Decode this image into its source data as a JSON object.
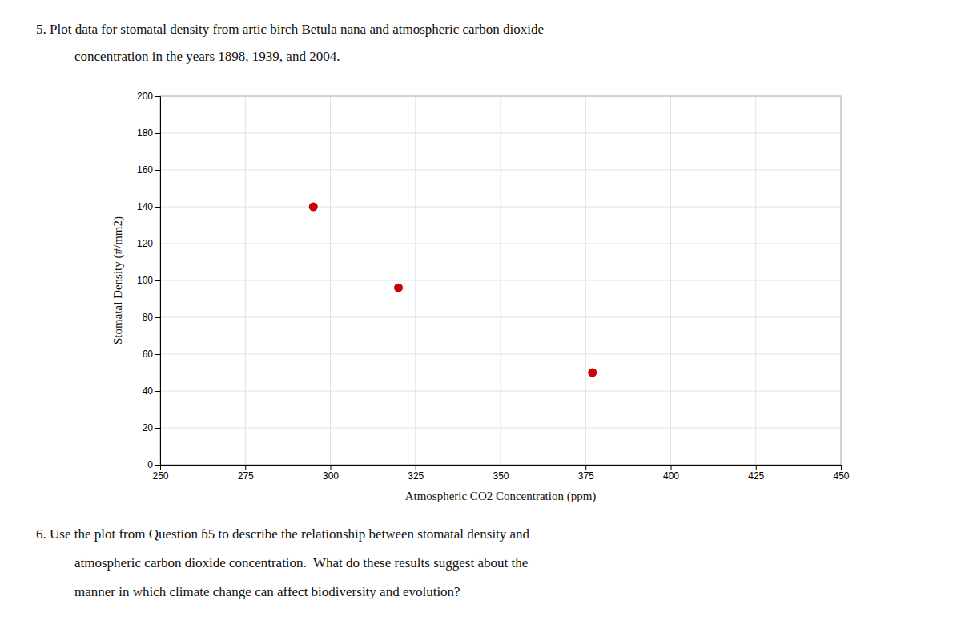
{
  "chart_data": {
    "type": "scatter",
    "title": [
      [
        "5. Plot data for stomatal density from artic birch ",
        "Betula nana",
        " and atmospheric carbon dioxide"
      ],
      [
        "concentration in the years 1898, 1939, and 2004."
      ]
    ],
    "annotations": [
      [
        "6. Use the plot from Question ",
        "ɓ",
        "5",
        " to describe the relationship between stomatal density and"
      ],
      [
        "atmospheric carbon dioxide concentration.  What do these results suggest about the"
      ],
      [
        "manner in which climate change can affect biodiversity and evolution?"
      ]
    ],
    "x_label": "Atmospheric CO2 Concentration (ppm)",
    "y_label": "Stomatal Density (#/mm2)",
    "x": [
      295,
      320,
      377
    ],
    "values": [
      140,
      96,
      50
    ],
    "color": "#cc0000",
    "xlim": [
      250,
      450
    ],
    "ylim": [
      0,
      200
    ],
    "xticks": [
      250,
      275,
      300,
      325,
      350,
      375,
      400,
      425,
      450
    ],
    "yticks": [
      0,
      20,
      40,
      60,
      80,
      100,
      120,
      140,
      160,
      180,
      200
    ],
    "grid": true
  }
}
